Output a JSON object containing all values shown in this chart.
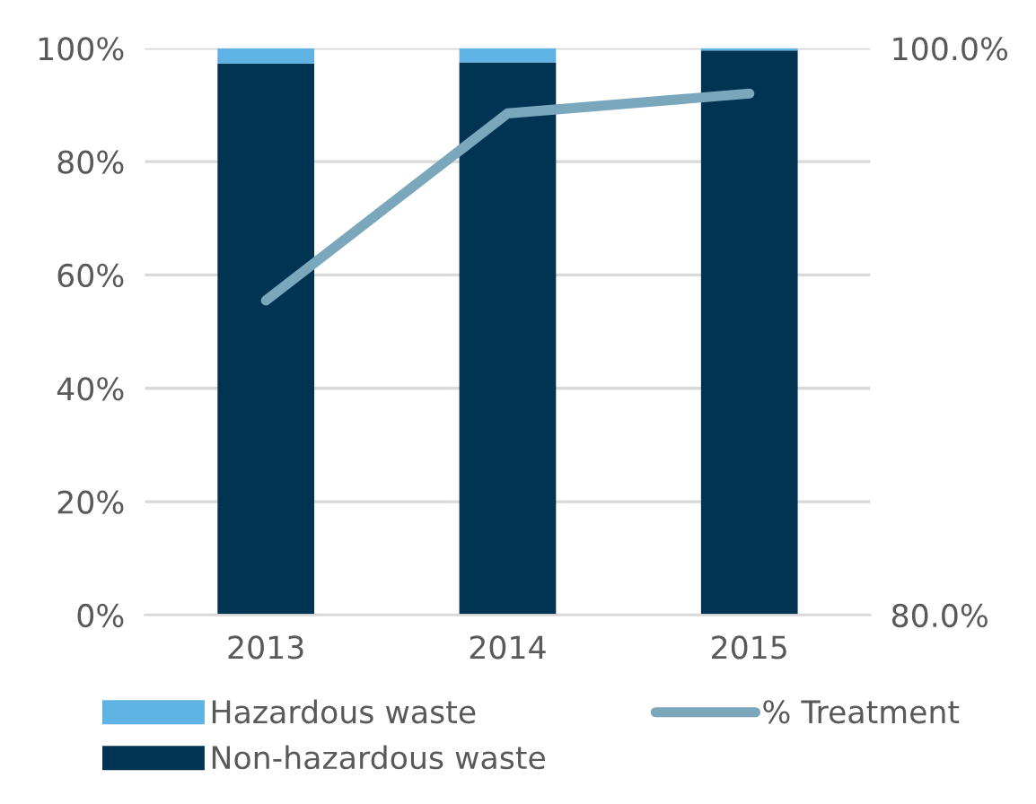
{
  "chart_data": {
    "type": "bar",
    "stacked": true,
    "categories": [
      "2013",
      "2014",
      "2015"
    ],
    "series": [
      {
        "name": "Non-hazardous waste",
        "color": "#003452",
        "values": [
          97.3,
          97.5,
          99.6
        ]
      },
      {
        "name": "Hazardous waste",
        "color": "#5eb3e4",
        "values": [
          2.7,
          2.5,
          0.4
        ]
      },
      {
        "name": "% Treatment",
        "type": "line",
        "axis": "y2",
        "color": "#7ba7bd",
        "values": [
          91.1,
          97.7,
          98.4
        ]
      }
    ],
    "ylim": [
      0,
      100
    ],
    "yticks": [
      {
        "value": 0,
        "label": "0%"
      },
      {
        "value": 20,
        "label": "20%"
      },
      {
        "value": 40,
        "label": "40%"
      },
      {
        "value": 60,
        "label": "60%"
      },
      {
        "value": 80,
        "label": "80%"
      },
      {
        "value": 100,
        "label": "100%"
      }
    ],
    "y2lim": [
      80,
      100
    ],
    "y2ticks": [
      {
        "value": 80,
        "label": "80.0%"
      },
      {
        "value": 100,
        "label": "100.0%"
      }
    ],
    "grid": "y",
    "legend": "bottom"
  }
}
